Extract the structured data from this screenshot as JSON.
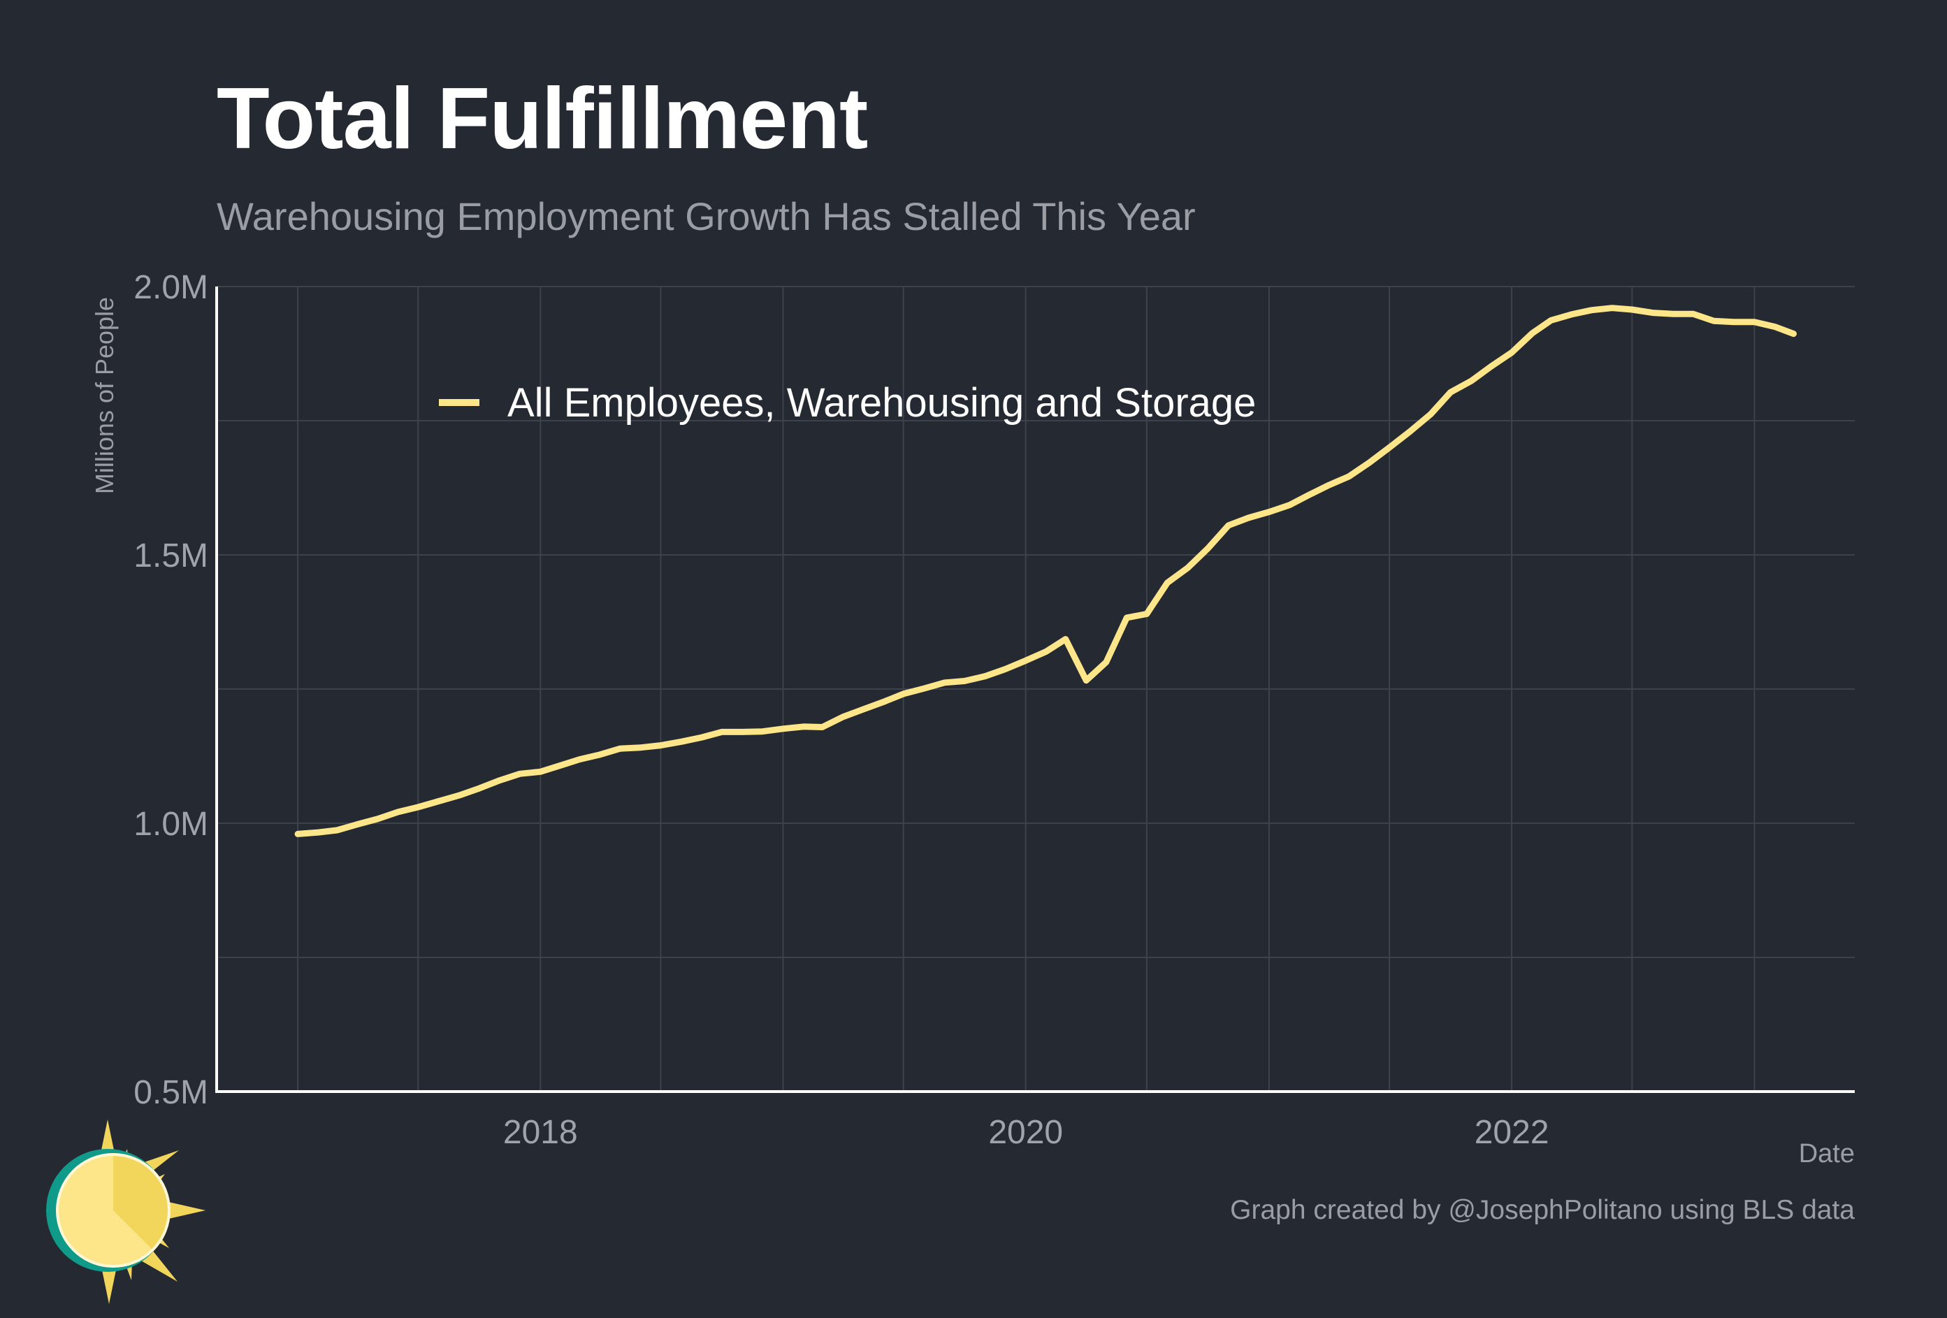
{
  "chart_data": {
    "type": "line",
    "title": "Total Fulfillment",
    "subtitle": "Warehousing Employment Growth Has Stalled This Year",
    "xlabel": "Date",
    "ylabel": "Millions of People",
    "caption": "Graph created by @JosephPolitano using BLS data",
    "x_axis": {
      "min": "2016-09-01",
      "max": "2023-06-01",
      "ticks": [
        "2018",
        "2020",
        "2022"
      ],
      "minor_gridlines": true
    },
    "y_axis": {
      "min": 0.5,
      "max": 2.0,
      "ticks": [
        "0.5M",
        "1.0M",
        "1.5M",
        "2.0M"
      ],
      "unit": "M",
      "minor_gridlines": true
    },
    "grid": true,
    "legend": {
      "placement": "top-left"
    },
    "series": [
      {
        "name": "All Employees, Warehousing and Storage",
        "color": "#fde68a",
        "points": [
          [
            "2017-01-01",
            0.98
          ],
          [
            "2017-02-01",
            0.983
          ],
          [
            "2017-03-01",
            0.987
          ],
          [
            "2017-04-01",
            0.998
          ],
          [
            "2017-05-01",
            1.008
          ],
          [
            "2017-06-01",
            1.021
          ],
          [
            "2017-07-01",
            1.03
          ],
          [
            "2017-08-01",
            1.041
          ],
          [
            "2017-09-01",
            1.052
          ],
          [
            "2017-10-01",
            1.065
          ],
          [
            "2017-11-01",
            1.08
          ],
          [
            "2017-12-01",
            1.092
          ],
          [
            "2018-01-01",
            1.096
          ],
          [
            "2018-02-01",
            1.108
          ],
          [
            "2018-03-01",
            1.119
          ],
          [
            "2018-04-01",
            1.128
          ],
          [
            "2018-05-01",
            1.139
          ],
          [
            "2018-06-01",
            1.141
          ],
          [
            "2018-07-01",
            1.145
          ],
          [
            "2018-08-01",
            1.152
          ],
          [
            "2018-09-01",
            1.16
          ],
          [
            "2018-10-01",
            1.17
          ],
          [
            "2018-11-01",
            1.17
          ],
          [
            "2018-12-01",
            1.171
          ],
          [
            "2019-01-01",
            1.176
          ],
          [
            "2019-02-01",
            1.18
          ],
          [
            "2019-03-01",
            1.179
          ],
          [
            "2019-04-01",
            1.198
          ],
          [
            "2019-05-01",
            1.212
          ],
          [
            "2019-06-01",
            1.226
          ],
          [
            "2019-07-01",
            1.241
          ],
          [
            "2019-08-01",
            1.251
          ],
          [
            "2019-09-01",
            1.262
          ],
          [
            "2019-10-01",
            1.265
          ],
          [
            "2019-11-01",
            1.274
          ],
          [
            "2019-12-01",
            1.287
          ],
          [
            "2020-01-01",
            1.303
          ],
          [
            "2020-02-01",
            1.32
          ],
          [
            "2020-03-01",
            1.343
          ],
          [
            "2020-04-01",
            1.266
          ],
          [
            "2020-05-01",
            1.3
          ],
          [
            "2020-06-01",
            1.383
          ],
          [
            "2020-07-01",
            1.39
          ],
          [
            "2020-08-01",
            1.448
          ],
          [
            "2020-09-01",
            1.476
          ],
          [
            "2020-10-01",
            1.512
          ],
          [
            "2020-11-01",
            1.555
          ],
          [
            "2020-12-01",
            1.569
          ],
          [
            "2021-01-01",
            1.58
          ],
          [
            "2021-02-01",
            1.593
          ],
          [
            "2021-03-01",
            1.611
          ],
          [
            "2021-04-01",
            1.63
          ],
          [
            "2021-05-01",
            1.646
          ],
          [
            "2021-06-01",
            1.672
          ],
          [
            "2021-07-01",
            1.7
          ],
          [
            "2021-08-01",
            1.73
          ],
          [
            "2021-09-01",
            1.762
          ],
          [
            "2021-10-01",
            1.803
          ],
          [
            "2021-11-01",
            1.824
          ],
          [
            "2021-12-01",
            1.851
          ],
          [
            "2022-01-01",
            1.877
          ],
          [
            "2022-02-01",
            1.913
          ],
          [
            "2022-03-01",
            1.937
          ],
          [
            "2022-04-01",
            1.948
          ],
          [
            "2022-05-01",
            1.956
          ],
          [
            "2022-06-01",
            1.96
          ],
          [
            "2022-07-01",
            1.957
          ],
          [
            "2022-08-01",
            1.951
          ],
          [
            "2022-09-01",
            1.949
          ],
          [
            "2022-10-01",
            1.949
          ],
          [
            "2022-11-01",
            1.936
          ],
          [
            "2022-12-01",
            1.934
          ],
          [
            "2023-01-01",
            1.934
          ],
          [
            "2023-02-01",
            1.925
          ],
          [
            "2023-03-01",
            1.912
          ]
        ]
      }
    ]
  }
}
